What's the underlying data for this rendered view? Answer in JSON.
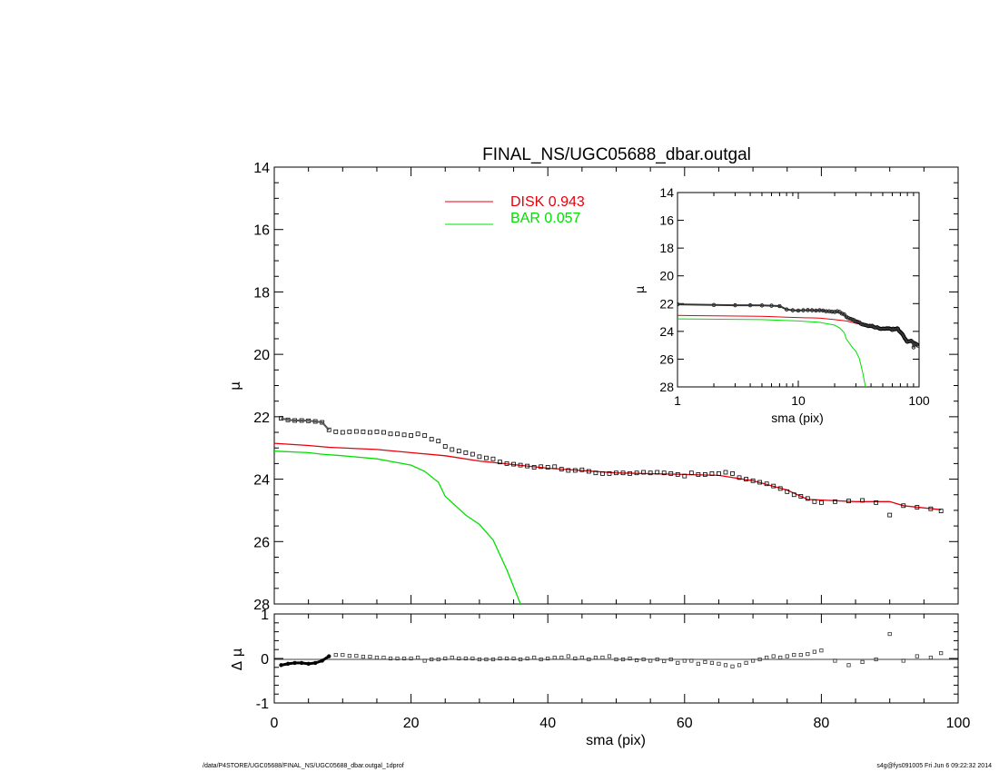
{
  "chart_data": [
    {
      "type": "scatter",
      "title": "FINAL_NS/UGC05688_dbar.outgal",
      "xlabel": "",
      "ylabel": "μ",
      "xlim": [
        0,
        100
      ],
      "ylim": [
        28,
        14
      ],
      "y_inverted": true,
      "ytick_labels": [
        "14",
        "16",
        "18",
        "20",
        "22",
        "24",
        "26",
        "28"
      ],
      "legend": [
        {
          "label": "DISK  0.943",
          "color": "#e8000b"
        },
        {
          "label": "BAR  0.057",
          "color": "#00e000"
        }
      ],
      "series": [
        {
          "kind": "points",
          "marker": "square-open",
          "color": "#000000",
          "x": [
            1,
            2,
            3,
            4,
            5,
            6,
            7,
            8,
            9,
            10,
            11,
            12,
            13,
            14,
            15,
            16,
            17,
            18,
            19,
            20,
            21,
            22,
            23,
            24,
            25,
            26,
            27,
            28,
            29,
            30,
            31,
            32,
            33,
            34,
            35,
            36,
            37,
            38,
            39,
            40,
            41,
            42,
            43,
            44,
            45,
            46,
            47,
            48,
            49,
            50,
            51,
            52,
            53,
            54,
            55,
            56,
            57,
            58,
            59,
            60,
            61,
            62,
            63,
            64,
            65,
            66,
            67,
            68,
            69,
            70,
            71,
            72,
            73,
            74,
            75,
            76,
            77,
            78,
            79,
            80,
            82,
            84,
            86,
            88,
            90,
            92,
            94,
            96,
            97.5
          ],
          "y": [
            22.05,
            22.1,
            22.12,
            22.12,
            22.13,
            22.15,
            22.18,
            22.42,
            22.48,
            22.5,
            22.48,
            22.47,
            22.48,
            22.5,
            22.48,
            22.5,
            22.55,
            22.55,
            22.58,
            22.6,
            22.55,
            22.6,
            22.72,
            22.78,
            22.95,
            23.05,
            23.1,
            23.15,
            23.2,
            23.28,
            23.32,
            23.35,
            23.45,
            23.5,
            23.52,
            23.55,
            23.58,
            23.62,
            23.6,
            23.62,
            23.6,
            23.68,
            23.72,
            23.72,
            23.7,
            23.75,
            23.8,
            23.82,
            23.82,
            23.8,
            23.8,
            23.82,
            23.8,
            23.78,
            23.8,
            23.78,
            23.8,
            23.82,
            23.85,
            23.9,
            23.8,
            23.85,
            23.85,
            23.82,
            23.82,
            23.78,
            23.82,
            23.95,
            24.0,
            24.05,
            24.1,
            24.15,
            24.22,
            24.3,
            24.4,
            24.5,
            24.55,
            24.62,
            24.72,
            24.75,
            24.72,
            24.7,
            24.68,
            24.75,
            25.15,
            24.85,
            24.9,
            24.95,
            25.02
          ]
        },
        {
          "kind": "line",
          "name": "DISK",
          "color": "#e8000b",
          "x": [
            0,
            5,
            8,
            15,
            20,
            25,
            30,
            40,
            50,
            60,
            65,
            70,
            75,
            78,
            85,
            90,
            92,
            97.5
          ],
          "y": [
            22.85,
            22.92,
            22.98,
            23.05,
            23.15,
            23.25,
            23.42,
            23.65,
            23.8,
            23.85,
            23.88,
            24.05,
            24.35,
            24.65,
            24.72,
            24.72,
            24.85,
            24.98
          ]
        },
        {
          "kind": "line",
          "name": "BAR",
          "color": "#00e000",
          "x": [
            0,
            5,
            7,
            10,
            15,
            20,
            22,
            24,
            25,
            28,
            30,
            32,
            34,
            36
          ],
          "y": [
            23.1,
            23.15,
            23.2,
            23.25,
            23.35,
            23.55,
            23.75,
            24.1,
            24.55,
            25.15,
            25.45,
            25.95,
            26.9,
            28.0
          ]
        }
      ]
    },
    {
      "type": "scatter",
      "title": "",
      "xlabel": "",
      "ylabel": "μ",
      "xscale": "log",
      "xlim": [
        1,
        100
      ],
      "ylim": [
        28,
        14
      ],
      "y_inverted": true,
      "ytick_labels": [
        "14",
        "16",
        "18",
        "20",
        "22",
        "24",
        "26",
        "28"
      ]
    },
    {
      "type": "scatter",
      "title": "",
      "xlabel": "sma (pix)",
      "ylabel": "Δ μ",
      "xlim": [
        0,
        100
      ],
      "ylim": [
        -1,
        1
      ],
      "xtick_labels": [
        "0",
        "20",
        "40",
        "60",
        "80",
        "100"
      ],
      "ytick_labels": [
        "1",
        "0",
        "-1"
      ],
      "series": [
        {
          "kind": "points",
          "marker": "square-open",
          "color": "#000000",
          "x": [
            1,
            2,
            3,
            4,
            5,
            6,
            7,
            8,
            9,
            10,
            11,
            12,
            13,
            14,
            15,
            16,
            17,
            18,
            19,
            20,
            21,
            22,
            23,
            24,
            25,
            26,
            27,
            28,
            29,
            30,
            31,
            32,
            33,
            34,
            35,
            36,
            37,
            38,
            39,
            40,
            41,
            42,
            43,
            44,
            45,
            46,
            47,
            48,
            49,
            50,
            51,
            52,
            53,
            54,
            55,
            56,
            57,
            58,
            59,
            60,
            61,
            62,
            63,
            64,
            65,
            66,
            67,
            68,
            69,
            70,
            71,
            72,
            73,
            74,
            75,
            76,
            77,
            78,
            79,
            80,
            82,
            84,
            86,
            88,
            90,
            92,
            94,
            96,
            97.5
          ],
          "y": [
            -0.15,
            -0.12,
            -0.1,
            -0.1,
            -0.12,
            -0.1,
            -0.05,
            0.05,
            0.08,
            0.08,
            0.06,
            0.06,
            0.04,
            0.04,
            0.02,
            0.02,
            0.0,
            0.0,
            0.0,
            0.0,
            0.02,
            -0.05,
            -0.02,
            -0.02,
            0.0,
            0.02,
            0.0,
            0.0,
            0.0,
            -0.02,
            -0.02,
            -0.02,
            0.0,
            0.0,
            0.0,
            -0.02,
            0.0,
            0.02,
            -0.02,
            0.0,
            0.02,
            0.02,
            0.05,
            0.0,
            0.02,
            -0.02,
            0.02,
            0.02,
            0.05,
            -0.02,
            -0.02,
            0.0,
            -0.04,
            -0.02,
            -0.05,
            -0.02,
            -0.06,
            -0.02,
            -0.1,
            -0.05,
            -0.05,
            -0.12,
            -0.08,
            -0.1,
            -0.12,
            -0.15,
            -0.18,
            -0.15,
            -0.1,
            -0.05,
            -0.02,
            0.02,
            0.05,
            0.02,
            0.05,
            0.08,
            0.08,
            0.1,
            0.15,
            0.18,
            -0.05,
            -0.15,
            -0.08,
            -0.02,
            0.55,
            -0.05,
            0.05,
            0.02,
            0.12
          ]
        }
      ]
    }
  ],
  "inset": {
    "xlabel": "sma (pix)",
    "xtick_labels": [
      "1",
      "10",
      "100"
    ]
  },
  "footer": {
    "left": "/data/P4STORE/UGC05688/FINAL_NS/UGC05688_dbar.outgal_1dprof",
    "right": "s4g@fys091005  Fri Jun  6 09:22:32 2014"
  },
  "colors": {
    "disk": "#e8000b",
    "bar": "#00e000",
    "points": "#000000",
    "axes": "#000000"
  }
}
